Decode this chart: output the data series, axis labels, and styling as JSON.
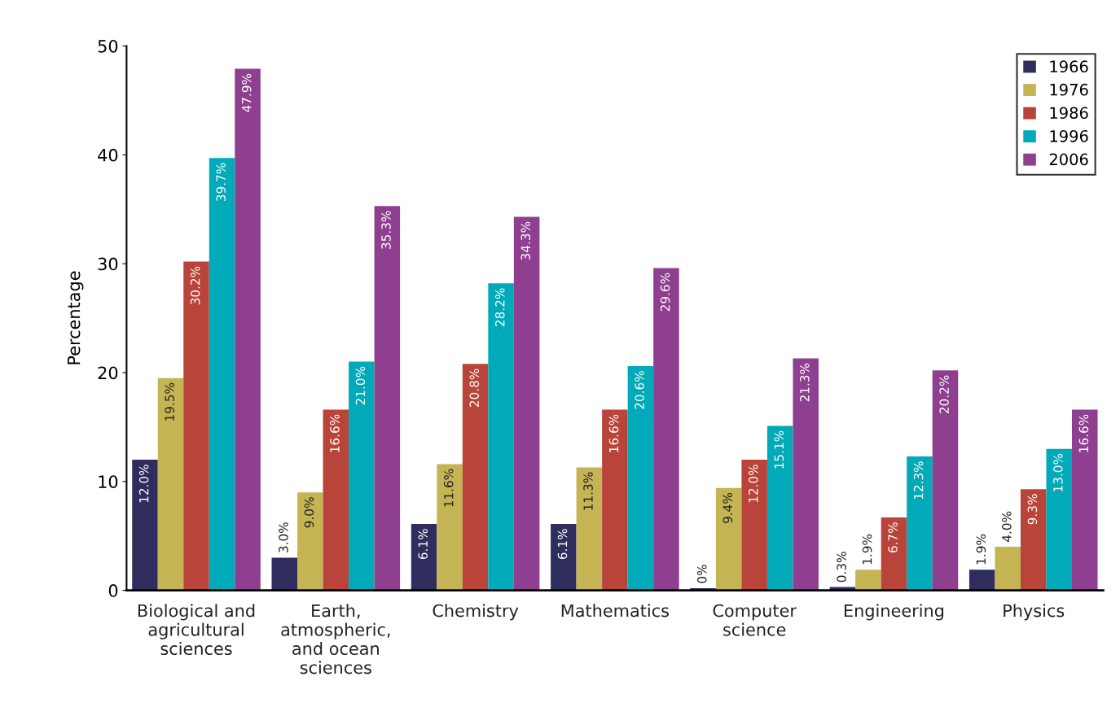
{
  "chart_data": {
    "type": "bar",
    "ylabel": "Percentage",
    "categories": [
      "Biological and\nagricultural\nsciences",
      "Earth,\natmospheric,\nand ocean\nsciences",
      "Chemistry",
      "Mathematics",
      "Computer\nscience",
      "Engineering",
      "Physics"
    ],
    "series": [
      {
        "name": "1966",
        "color": "#2e2d5e",
        "values": [
          12.0,
          3.0,
          6.1,
          6.1,
          0.2,
          0.3,
          1.9
        ],
        "value_labels": [
          "12.0%",
          "3.0%",
          "6.1%",
          "6.1%",
          "0%",
          "0.3%",
          "1.9%"
        ]
      },
      {
        "name": "1976",
        "color": "#c4b454",
        "values": [
          19.5,
          9.0,
          11.6,
          11.3,
          9.4,
          1.9,
          4.0
        ],
        "value_labels": [
          "19.5%",
          "9.0%",
          "11.6%",
          "11.3%",
          "9.4%",
          "1.9%",
          "4.0%"
        ]
      },
      {
        "name": "1986",
        "color": "#b9443a",
        "values": [
          30.2,
          16.6,
          20.8,
          16.6,
          12.0,
          6.7,
          9.3
        ],
        "value_labels": [
          "30.2%",
          "16.6%",
          "20.8%",
          "16.6%",
          "12.0%",
          "6.7%",
          "9.3%"
        ]
      },
      {
        "name": "1996",
        "color": "#00aab8",
        "values": [
          39.7,
          21.0,
          28.2,
          20.6,
          15.1,
          12.3,
          13.0
        ],
        "value_labels": [
          "39.7%",
          "21.0%",
          "28.2%",
          "20.6%",
          "15.1%",
          "12.3%",
          "13.0%"
        ]
      },
      {
        "name": "2006",
        "color": "#8e3f8f",
        "values": [
          47.9,
          35.3,
          34.3,
          29.6,
          21.3,
          20.2,
          16.6
        ],
        "value_labels": [
          "47.9%",
          "35.3%",
          "34.3%",
          "29.6%",
          "21.3%",
          "20.2%",
          "16.6%"
        ]
      }
    ],
    "ylim": [
      0,
      50
    ],
    "yticks": [
      0,
      10,
      20,
      30,
      40,
      50
    ],
    "grid": false,
    "legend": "top right"
  }
}
